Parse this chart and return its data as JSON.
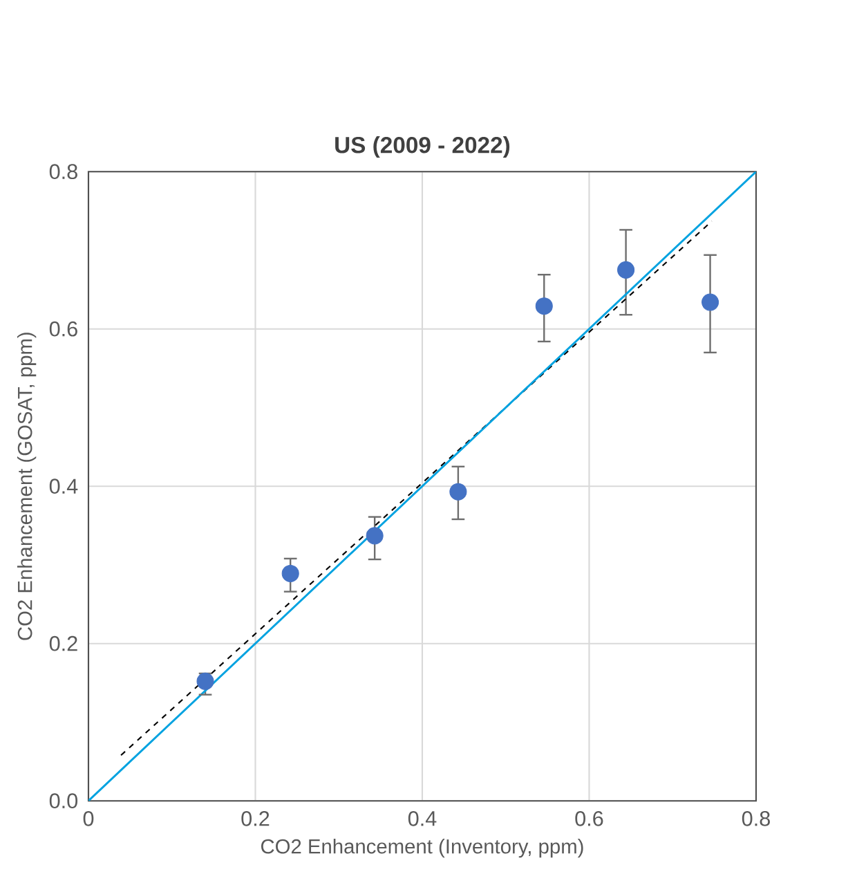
{
  "chart_data": {
    "type": "scatter",
    "title": "US (2009 - 2022)",
    "xlabel": "CO2 Enhancement (Inventory, ppm)",
    "ylabel": "CO2 Enhancement (GOSAT, ppm)",
    "xlim": [
      0,
      0.8
    ],
    "ylim": [
      0,
      0.8
    ],
    "xticks": [
      0,
      0.2,
      0.4,
      0.6,
      0.8
    ],
    "yticks": [
      {
        "value": 0,
        "label": "0.0"
      },
      0.2,
      0.4,
      0.6,
      0.8
    ],
    "grid": true,
    "series": [
      {
        "color": "#4472c4",
        "marker": "circle",
        "x": [
          0.14,
          0.242,
          0.343,
          0.443,
          0.546,
          0.644,
          0.745
        ],
        "values": [
          0.152,
          0.289,
          0.337,
          0.393,
          0.629,
          0.675,
          0.634
        ],
        "errors": [
          [
            0.135,
            0.162
          ],
          [
            0.266,
            0.308
          ],
          [
            0.307,
            0.361
          ],
          [
            0.358,
            0.425
          ],
          [
            0.584,
            0.669
          ],
          [
            0.618,
            0.726
          ],
          [
            0.57,
            0.694
          ]
        ]
      },
      {
        "type": "line",
        "color": "#000000",
        "marker": "none",
        "line_style": "dashed",
        "x": [
          0.039,
          0.747
        ],
        "values": [
          0.058,
          0.737
        ]
      },
      {
        "type": "line",
        "color": "#00a2e0",
        "marker": "none",
        "line_style": "solid",
        "x": [
          0,
          0.8
        ],
        "values": [
          0,
          0.8
        ]
      }
    ]
  }
}
